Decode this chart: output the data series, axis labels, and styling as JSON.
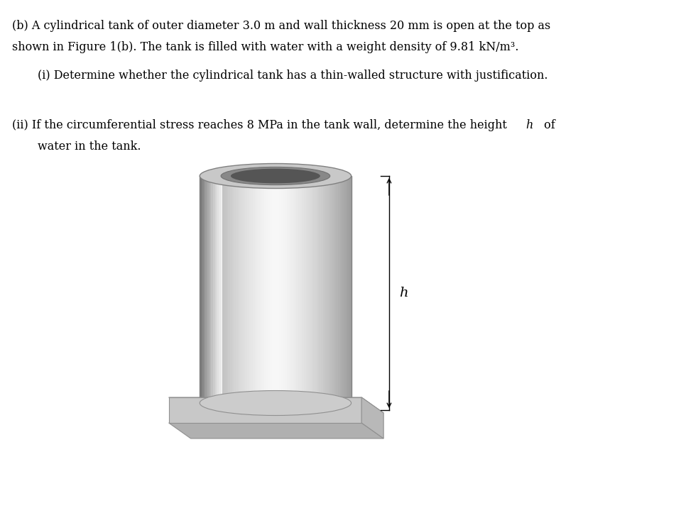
{
  "line1": "(b) A cylindrical tank of outer diameter 3.0 m and wall thickness 20 mm is open at the top as",
  "line2": "shown in Figure 1(b). The tank is filled with water with a weight density of 9.81 kN/m³.",
  "line3": "(i) Determine whether the cylindrical tank has a thin-walled structure with justification.",
  "line4": "(ii) If the circumferential stress reaches 8 MPa in the tank wall, determine the height ",
  "line4_italic": "h",
  "line4_end": " of",
  "line5": "water in the tank.",
  "bg_color": "#ffffff",
  "text_color": "#000000",
  "fig_width": 9.59,
  "fig_height": 7.23,
  "cylinder_color_light": "#f0f0f0",
  "cylinder_color_mid": "#d8d8d8",
  "cylinder_color_dark": "#b0b0b0",
  "base_color_top": "#d0d0d0",
  "base_color_side": "#a8a8a8"
}
